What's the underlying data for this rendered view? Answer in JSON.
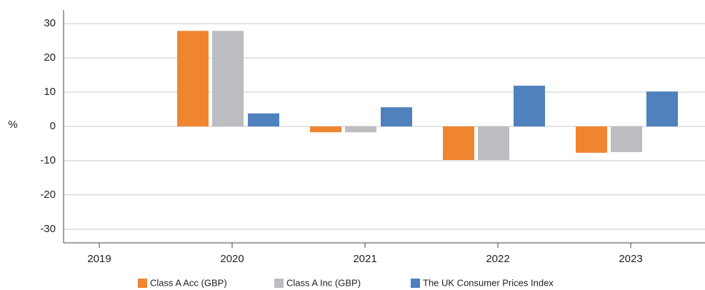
{
  "chart_data": {
    "type": "bar",
    "y_label": "%",
    "categories": [
      "2019",
      "2020",
      "2021",
      "2022",
      "2023"
    ],
    "series": [
      {
        "name": "Class A Acc (GBP)",
        "color": "#f08530",
        "values": [
          null,
          27.9,
          -1.7,
          -9.8,
          -7.7
        ]
      },
      {
        "name": "Class A Inc (GBP)",
        "color": "#bcbdc0",
        "values": [
          null,
          27.9,
          -1.7,
          -9.8,
          -7.5
        ]
      },
      {
        "name": "The UK Consumer Prices Index",
        "color": "#4f81bd",
        "values": [
          null,
          3.8,
          5.6,
          11.9,
          10.2
        ]
      }
    ],
    "ylim": [
      -34,
      34
    ],
    "yticks": [
      -30,
      -20,
      -10,
      0,
      10,
      20,
      30
    ],
    "grid": true,
    "legend": "bottom"
  }
}
